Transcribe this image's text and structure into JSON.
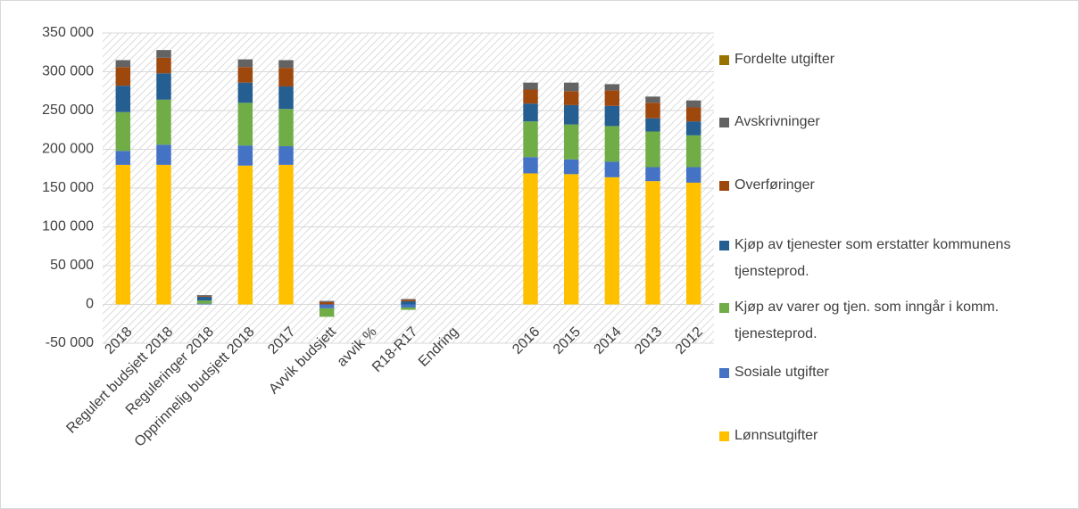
{
  "chart_data": {
    "type": "stacked_bar",
    "categories": [
      "2018",
      "Regulert budsjett 2018",
      "Reguleringer 2018",
      "Opprinnelig budsjett 2018",
      "2017",
      "Avvik budsjett",
      "avvik %",
      "R18-R17",
      "Endring",
      null,
      "2016",
      "2015",
      "2014",
      "2013",
      "2012"
    ],
    "series": [
      {
        "name": "Lønnsutgifter",
        "color": "#ffc000",
        "values": [
          180000,
          180000,
          0,
          179000,
          180000,
          0,
          null,
          0,
          null,
          null,
          169000,
          168000,
          164000,
          159000,
          157000
        ]
      },
      {
        "name": "Sosiale utgifter",
        "color": "#4472c4",
        "values": [
          18000,
          26000,
          1000,
          26000,
          24000,
          -5000,
          null,
          -4000,
          null,
          null,
          21000,
          19000,
          20000,
          18000,
          20000
        ]
      },
      {
        "name": "Kjøp av varer og tjen. som inngår i komm. tjenesteprod.",
        "color": "#70ad47",
        "values": [
          50000,
          58000,
          4000,
          55000,
          48000,
          -11000,
          null,
          -3000,
          null,
          null,
          46000,
          45000,
          46000,
          46000,
          41000
        ]
      },
      {
        "name": "Kjøp av tjenester som erstatter kommunens tjensteprod.",
        "color": "#255e91",
        "values": [
          34000,
          34000,
          5000,
          26000,
          29000,
          0,
          null,
          4000,
          null,
          null,
          23000,
          25000,
          26000,
          17000,
          18000
        ]
      },
      {
        "name": "Overføringer",
        "color": "#9e480e",
        "values": [
          24000,
          20000,
          1000,
          20000,
          24000,
          3000,
          null,
          2000,
          null,
          null,
          18000,
          18000,
          20000,
          20000,
          18000
        ]
      },
      {
        "name": "Avskrivninger",
        "color": "#636363",
        "values": [
          9000,
          10000,
          1000,
          10000,
          10000,
          1500,
          null,
          1000,
          null,
          null,
          9000,
          11000,
          8000,
          8000,
          9000
        ]
      },
      {
        "name": "Fordelte utgifter",
        "color": "#997300",
        "values": [
          0,
          0,
          0,
          0,
          0,
          0,
          null,
          0,
          null,
          null,
          0,
          0,
          0,
          0,
          0
        ]
      }
    ],
    "ylim": [
      -50000,
      350000
    ],
    "yticks": [
      {
        "value": -50000,
        "label": "-50 000"
      },
      0,
      {
        "value": 50000,
        "label": "50 000"
      },
      {
        "value": 100000,
        "label": "100 000"
      },
      {
        "value": 150000,
        "label": "150 000"
      },
      {
        "value": 200000,
        "label": "200 000"
      },
      {
        "value": 250000,
        "label": "250 000"
      },
      {
        "value": 300000,
        "label": "300 000"
      },
      {
        "value": 350000,
        "label": "350 000"
      }
    ],
    "grid": true,
    "legend": "right"
  }
}
